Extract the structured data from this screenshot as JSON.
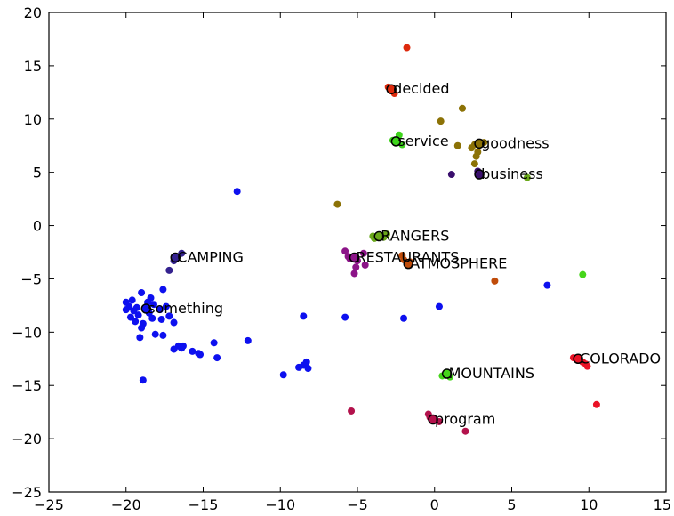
{
  "chart_data": {
    "type": "scatter",
    "title": "",
    "xlabel": "",
    "ylabel": "",
    "xlim": [
      -25,
      15
    ],
    "ylim": [
      -25,
      20
    ],
    "xticks": [
      -25,
      -20,
      -15,
      -10,
      -5,
      0,
      5,
      10,
      15
    ],
    "yticks": [
      20,
      15,
      10,
      5,
      0,
      -5,
      -10,
      -15,
      -20,
      -25
    ],
    "grid": false,
    "legend": "none",
    "clusters": [
      {
        "label": "decided",
        "color": "#dd2a0d",
        "labeled_point": [
          -2.8,
          12.8
        ],
        "points": [
          [
            -1.8,
            16.7
          ],
          [
            -2.8,
            12.8
          ],
          [
            -2.6,
            12.4
          ],
          [
            -3.0,
            13.0
          ]
        ]
      },
      {
        "label": "service",
        "color": "#3ed41c",
        "labeled_point": [
          -2.5,
          7.9
        ],
        "points": [
          [
            -2.5,
            7.9
          ],
          [
            -2.3,
            8.5
          ],
          [
            -2.1,
            7.6
          ],
          [
            -2.7,
            8.0
          ]
        ]
      },
      {
        "label": "goodness",
        "color": "#8c7206",
        "labeled_point": [
          2.9,
          7.7
        ],
        "points": [
          [
            0.4,
            9.8
          ],
          [
            1.8,
            11.0
          ],
          [
            1.5,
            7.5
          ],
          [
            2.4,
            7.3
          ],
          [
            2.6,
            7.6
          ],
          [
            2.9,
            7.7
          ],
          [
            2.8,
            6.9
          ],
          [
            2.7,
            6.5
          ],
          [
            2.6,
            5.8
          ],
          [
            3.2,
            7.8
          ],
          [
            -6.3,
            2.0
          ]
        ]
      },
      {
        "label": "business",
        "color": "#3a0f6d",
        "labeled_point": [
          2.9,
          4.8
        ],
        "points": [
          [
            2.9,
            4.8
          ],
          [
            2.8,
            5.1
          ],
          [
            1.1,
            4.8
          ]
        ]
      },
      {
        "label": "RANGERS",
        "color": "#6aa81a",
        "labeled_point": [
          -3.6,
          -1.0
        ],
        "points": [
          [
            -3.6,
            -1.0
          ],
          [
            -3.9,
            -1.2
          ],
          [
            -3.1,
            -0.8
          ],
          [
            -3.3,
            -1.1
          ],
          [
            -4.0,
            -1.0
          ],
          [
            6.0,
            4.5
          ]
        ]
      },
      {
        "label": "CAMPING",
        "color": "#34228f",
        "labeled_point": [
          -16.8,
          -3.0
        ],
        "points": [
          [
            -16.8,
            -3.0
          ],
          [
            -16.9,
            -3.3
          ],
          [
            -16.4,
            -2.6
          ],
          [
            -17.2,
            -4.2
          ]
        ]
      },
      {
        "label": "RESTAURANTS",
        "color": "#8c1488",
        "labeled_point": [
          -5.2,
          -3.0
        ],
        "points": [
          [
            -5.2,
            -3.0
          ],
          [
            -5.8,
            -2.4
          ],
          [
            -5.6,
            -2.9
          ],
          [
            -5.0,
            -3.3
          ],
          [
            -4.6,
            -2.6
          ],
          [
            -4.5,
            -3.7
          ],
          [
            -5.1,
            -3.9
          ],
          [
            -5.2,
            -4.5
          ],
          [
            -5.5,
            -3.1
          ]
        ]
      },
      {
        "label": "ATMOSPHERE",
        "color": "#c04c0a",
        "labeled_point": [
          -1.7,
          -3.6
        ],
        "points": [
          [
            -1.7,
            -3.6
          ],
          [
            -2.1,
            -2.8
          ],
          [
            -2.0,
            -3.2
          ],
          [
            -1.6,
            -3.4
          ],
          [
            3.9,
            -5.2
          ]
        ]
      },
      {
        "label": "something",
        "color": "#0d10ef",
        "labeled_point": [
          -18.7,
          -7.8
        ],
        "points": [
          [
            -12.8,
            3.2
          ],
          [
            -17.6,
            -6.0
          ],
          [
            -18.4,
            -6.8
          ],
          [
            -19.0,
            -6.3
          ],
          [
            -19.6,
            -7.0
          ],
          [
            -20.0,
            -7.2
          ],
          [
            -19.8,
            -7.6
          ],
          [
            -19.3,
            -7.7
          ],
          [
            -18.7,
            -7.8
          ],
          [
            -18.2,
            -7.4
          ],
          [
            -17.8,
            -7.9
          ],
          [
            -18.5,
            -8.2
          ],
          [
            -19.2,
            -8.4
          ],
          [
            -19.7,
            -8.6
          ],
          [
            -20.0,
            -7.9
          ],
          [
            -19.4,
            -9.0
          ],
          [
            -18.9,
            -9.2
          ],
          [
            -18.3,
            -8.7
          ],
          [
            -17.7,
            -8.8
          ],
          [
            -17.4,
            -7.6
          ],
          [
            -17.2,
            -8.5
          ],
          [
            -19.0,
            -9.6
          ],
          [
            -19.1,
            -10.5
          ],
          [
            -18.1,
            -10.2
          ],
          [
            -17.6,
            -10.3
          ],
          [
            -16.9,
            -9.1
          ],
          [
            -19.5,
            -8.0
          ],
          [
            -18.6,
            -7.2
          ],
          [
            -16.6,
            -11.3
          ],
          [
            -16.3,
            -11.3
          ],
          [
            -16.4,
            -11.5
          ],
          [
            -16.9,
            -11.6
          ],
          [
            -15.7,
            -11.8
          ],
          [
            -15.3,
            -12.0
          ],
          [
            -15.2,
            -12.1
          ],
          [
            -14.3,
            -11.0
          ],
          [
            -14.1,
            -12.4
          ],
          [
            -12.1,
            -10.8
          ],
          [
            -18.9,
            -14.5
          ],
          [
            -8.5,
            -8.5
          ],
          [
            -5.8,
            -8.6
          ],
          [
            -2.0,
            -8.7
          ],
          [
            0.3,
            -7.6
          ],
          [
            7.3,
            -5.6
          ],
          [
            -8.5,
            -13.1
          ],
          [
            -8.3,
            -12.8
          ],
          [
            -8.8,
            -13.3
          ],
          [
            -8.2,
            -13.4
          ],
          [
            -9.8,
            -14.0
          ]
        ]
      },
      {
        "label": "COLORADO",
        "color": "#ea1226",
        "labeled_point": [
          9.3,
          -12.5
        ],
        "points": [
          [
            9.3,
            -12.5
          ],
          [
            9.0,
            -12.4
          ],
          [
            9.6,
            -12.8
          ],
          [
            9.9,
            -13.2
          ],
          [
            9.8,
            -13.0
          ],
          [
            10.5,
            -16.8
          ]
        ]
      },
      {
        "label": "MOUNTAINS",
        "color": "#45d51a",
        "labeled_point": [
          0.8,
          -13.9
        ],
        "points": [
          [
            0.8,
            -13.9
          ],
          [
            0.5,
            -14.1
          ],
          [
            1.0,
            -14.2
          ],
          [
            9.6,
            -4.6
          ]
        ]
      },
      {
        "label": "program",
        "color": "#b3124c",
        "labeled_point": [
          -0.1,
          -18.2
        ],
        "points": [
          [
            -0.1,
            -18.2
          ],
          [
            -0.4,
            -17.7
          ],
          [
            -0.3,
            -18.0
          ],
          [
            0.3,
            -18.4
          ],
          [
            2.0,
            -19.3
          ],
          [
            -5.4,
            -17.4
          ]
        ]
      }
    ]
  }
}
